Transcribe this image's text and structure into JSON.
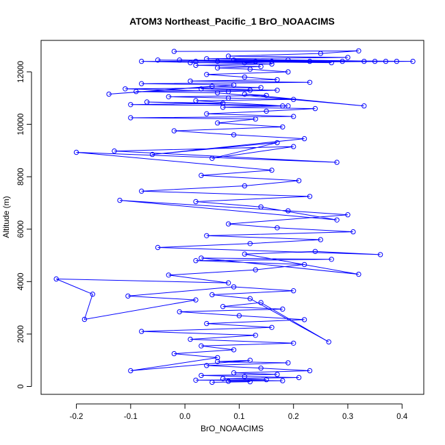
{
  "chart_data": {
    "type": "line",
    "title": "ATOM3 Northeast_Pacific_1 BrO_NOAACIMS",
    "xlabel": "BrO_NOAACIMS",
    "ylabel": "Altitude (m)",
    "xlim": [
      -0.265,
      0.44
    ],
    "ylim": [
      -300,
      13200
    ],
    "xticks": [
      -0.2,
      -0.1,
      0.0,
      0.1,
      0.2,
      0.3,
      0.4
    ],
    "xtick_labels": [
      "-0.2",
      "-0.1",
      "0.0",
      "0.1",
      "0.2",
      "0.3",
      "0.4"
    ],
    "yticks": [
      0,
      2000,
      4000,
      6000,
      8000,
      10000,
      12000
    ],
    "ytick_labels": [
      "0",
      "2000",
      "4000",
      "6000",
      "8000",
      "10000",
      "12000"
    ],
    "grid": false,
    "series_color": "#0000ff",
    "marker": "open-circle",
    "series": [
      {
        "x": [
          0.05,
          0.12,
          0.08,
          0.18,
          0.02,
          0.15,
          0.07,
          0.21,
          0.11,
          0.03,
          0.17,
          0.09,
          0.23,
          0.14,
          0.04,
          0.19,
          0.06,
          0.12,
          -0.1,
          0.06,
          -0.02,
          0.09,
          0.03,
          0.2,
          0.01,
          0.13,
          -0.08,
          0.16,
          0.04,
          0.22,
          0.1,
          -0.01,
          0.18,
          0.07,
          0.14,
          0.265,
          0.12,
          0.05,
          0.2,
          0.09,
          -0.105,
          0.02,
          -0.185,
          -0.17,
          -0.237,
          0.08,
          -0.03,
          0.13,
          0.22,
          0.02,
          0.27,
          0.03,
          0.32,
          0.11,
          0.24,
          0.36,
          -0.05,
          0.12,
          0.25,
          0.04,
          0.31,
          0.17,
          0.08,
          0.3,
          0.19,
          -0.12,
          0.28,
          0.14,
          0.02,
          0.23,
          -0.08,
          0.11,
          0.21,
          0.03,
          0.16,
          -0.2,
          0.28,
          -0.13,
          0.2,
          0.05,
          0.17,
          -0.06,
          0.22,
          0.09,
          -0.02,
          0.18,
          0.06,
          0.13,
          -0.1,
          0.2,
          0.04,
          0.15,
          0.24,
          0.07,
          0.19,
          -0.1,
          0.07,
          -0.07,
          0.18,
          0.02,
          0.2,
          0.08,
          -0.03,
          0.15,
          0.11,
          0.33,
          0.06,
          -0.09,
          0.12,
          0.03,
          0.17,
          0.08,
          -0.11,
          0.14,
          0.05,
          -0.14,
          0.09,
          -0.08,
          0.23,
          0.01,
          0.17,
          0.11,
          0.04,
          0.19,
          0.12,
          0.06,
          0.14,
          0.02,
          0.16,
          -0.08,
          0.33,
          -0.05,
          0.13,
          0.27,
          0.02,
          0.35,
          0.09,
          0.42,
          0.01,
          0.39,
          -0.01,
          0.29,
          0.06,
          0.19,
          0.11,
          0.23,
          0.16,
          0.37,
          0.04,
          0.3,
          0.08,
          0.25,
          0.32,
          -0.02
        ],
        "y": [
          160,
          180,
          200,
          220,
          240,
          260,
          300,
          340,
          380,
          420,
          460,
          520,
          600,
          700,
          800,
          900,
          950,
          1000,
          600,
          1100,
          1250,
          1400,
          1550,
          1650,
          1800,
          1950,
          2100,
          2250,
          2400,
          2550,
          2700,
          2850,
          2950,
          3050,
          3200,
          1700,
          3350,
          3500,
          3650,
          3800,
          3450,
          3300,
          2560,
          3520,
          4100,
          3950,
          4250,
          4450,
          4650,
          4800,
          4850,
          4900,
          4280,
          5050,
          5150,
          5030,
          5300,
          5450,
          5600,
          5750,
          5900,
          6050,
          6200,
          6550,
          6700,
          7100,
          6350,
          6850,
          7050,
          7250,
          7450,
          7650,
          7850,
          8050,
          8250,
          8930,
          8550,
          8980,
          9150,
          8700,
          9300,
          8850,
          9450,
          9600,
          9750,
          9900,
          10050,
          10200,
          10250,
          10300,
          10400,
          10500,
          10600,
          10650,
          10700,
          10750,
          10800,
          10850,
          10700,
          10900,
          10950,
          11000,
          11050,
          11100,
          11150,
          10700,
          11200,
          11250,
          11300,
          11350,
          11300,
          11250,
          11350,
          11400,
          11450,
          11150,
          11500,
          11550,
          11600,
          11650,
          11700,
          11800,
          11900,
          12000,
          12100,
          12150,
          12200,
          12250,
          12300,
          12400,
          12400,
          12450,
          12400,
          12350,
          12400,
          12400,
          12450,
          12400,
          12350,
          12400,
          12450,
          12400,
          12400,
          12450,
          12350,
          12400,
          12400,
          12400,
          12500,
          12550,
          12600,
          12700,
          12800,
          12780
        ]
      }
    ]
  }
}
